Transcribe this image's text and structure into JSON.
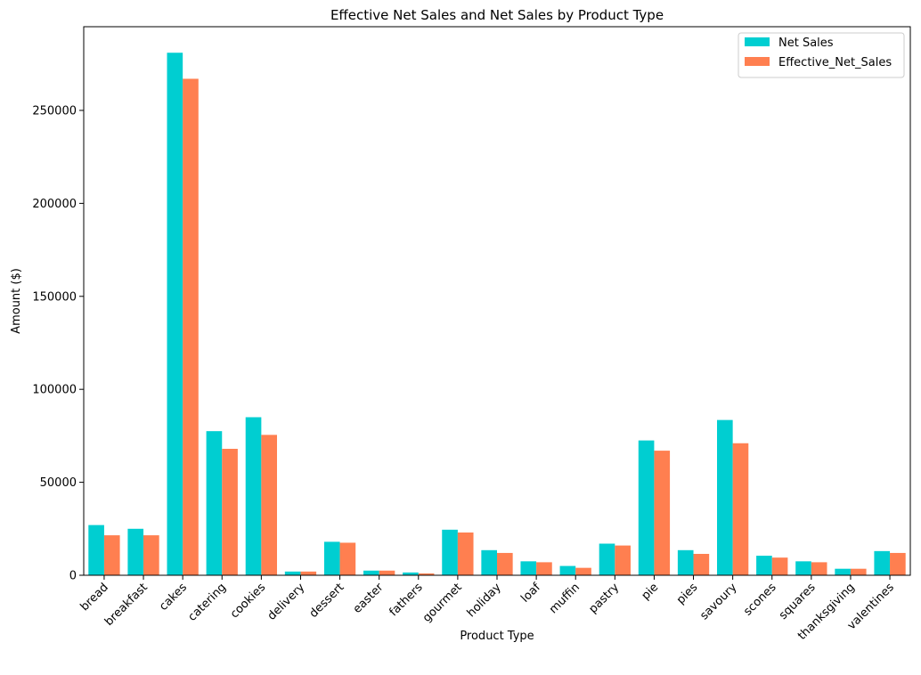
{
  "chart_data": {
    "type": "bar",
    "title": "Effective Net Sales and Net Sales by Product Type",
    "xlabel": "Product Type",
    "ylabel": "Amount ($)",
    "ylim": [
      0,
      295000
    ],
    "yticks": [
      0,
      50000,
      100000,
      150000,
      200000,
      250000
    ],
    "ytick_labels": [
      "0",
      "50000",
      "100000",
      "150000",
      "200000",
      "250000"
    ],
    "grid": false,
    "legend_position": "top-right",
    "categories": [
      "bread",
      "breakfast",
      "cakes",
      "catering",
      "cookies",
      "delivery",
      "dessert",
      "easter",
      "fathers",
      "gourmet",
      "holiday",
      "loaf",
      "muffin",
      "pastry",
      "pie",
      "pies",
      "savoury",
      "scones",
      "squares",
      "thanksgiving",
      "valentines"
    ],
    "series": [
      {
        "name": "Net Sales",
        "color": "#00ced1",
        "values": [
          27000,
          25000,
          281000,
          77500,
          85000,
          2000,
          18000,
          2500,
          1500,
          24500,
          13500,
          7500,
          5000,
          17000,
          72500,
          13500,
          83500,
          10500,
          7500,
          3500,
          13000
        ]
      },
      {
        "name": "Effective_Net_Sales",
        "color": "#ff7f50",
        "values": [
          21500,
          21500,
          267000,
          68000,
          75500,
          2000,
          17500,
          2500,
          1000,
          23000,
          12000,
          7000,
          4000,
          16000,
          67000,
          11500,
          71000,
          9500,
          7000,
          3500,
          12000
        ]
      }
    ]
  }
}
